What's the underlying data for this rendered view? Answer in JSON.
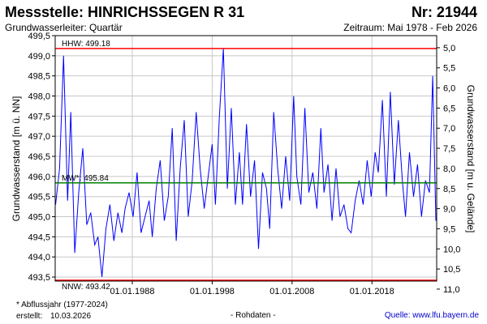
{
  "header": {
    "title": "Messstelle: HINRICHSSEGEN R 31",
    "number": "Nr: 21944",
    "aquifer": "Grundwasserleiter: Quartär",
    "period": "Zeitraum: Mai 1978 - Feb 2026"
  },
  "footer": {
    "footnote": "* Abflussjahr (1977-2024)",
    "created_label": "erstellt:",
    "created_date": "10.03.2026",
    "data_type": "- Rohdaten -",
    "source": "Quelle: www.lfu.bayern.de"
  },
  "colors": {
    "series": "#0000ff",
    "hhw": "#ff0000",
    "nnw": "#ff0000",
    "mw": "#008000",
    "grid": "#c8c8c8"
  },
  "chart_data": {
    "type": "line",
    "title": "",
    "xlabel": "",
    "ylabel": "Grundwasserstand [m ü. NN]",
    "ylabel_right": "Grundwasserstand [m u. Gelände]",
    "ylim": [
      493.4,
      499.5
    ],
    "xlim": [
      1978.35,
      2026.1
    ],
    "x_ticks": [
      {
        "x": 1988.0,
        "label": "01.01.1988"
      },
      {
        "x": 1998.0,
        "label": "01.01.1998"
      },
      {
        "x": 2008.0,
        "label": "01.01.2008"
      },
      {
        "x": 2018.0,
        "label": "01.01.2018"
      }
    ],
    "y_ticks": [
      "493,5",
      "494,0",
      "494,5",
      "495,0",
      "495,5",
      "496,0",
      "496,5",
      "497,0",
      "497,5",
      "498,0",
      "498,5",
      "499,0",
      "499,5"
    ],
    "y_tick_values": [
      493.5,
      494.0,
      494.5,
      495.0,
      495.5,
      496.0,
      496.5,
      497.0,
      497.5,
      498.0,
      498.5,
      499.0,
      499.5
    ],
    "y2_ticks": [
      "5,0",
      "5,5",
      "6,0",
      "6,5",
      "7,0",
      "7,5",
      "8,0",
      "8,5",
      "9,0",
      "9,5",
      "10,0",
      "10,5",
      "11,0"
    ],
    "y2_tick_values": [
      5.0,
      5.5,
      6.0,
      6.5,
      7.0,
      7.5,
      8.0,
      8.5,
      9.0,
      9.5,
      10.0,
      10.5,
      11.0
    ],
    "y2_reference_elevation": 504.2,
    "reference_lines": [
      {
        "name": "HHW",
        "label": "HHW: 499.18",
        "value": 499.18
      },
      {
        "name": "MW",
        "label": "MW*: 495.84",
        "value": 495.84
      },
      {
        "name": "NNW",
        "label": "NNW: 493.42",
        "value": 493.42
      }
    ],
    "series": [
      {
        "x": [
          1978.4,
          1978.9,
          1979.4,
          1979.9,
          1980.3,
          1980.8,
          1981.3,
          1981.8,
          1982.3,
          1982.8,
          1983.3,
          1983.7,
          1984.2,
          1984.7,
          1985.2,
          1985.7,
          1986.2,
          1986.7,
          1987.1,
          1987.6,
          1988.1,
          1988.6,
          1989.1,
          1989.6,
          1990.1,
          1990.5,
          1991.0,
          1991.5,
          1992.0,
          1992.5,
          1993.0,
          1993.5,
          1994.0,
          1994.5,
          1995.0,
          1995.5,
          1996.0,
          1996.5,
          1997.0,
          1997.5,
          1998.0,
          1998.4,
          1998.9,
          1999.4,
          1999.9,
          2000.4,
          2000.9,
          2001.4,
          2001.8,
          2002.3,
          2002.8,
          2003.3,
          2003.8,
          2004.3,
          2004.8,
          2005.2,
          2005.7,
          2006.2,
          2006.7,
          2007.2,
          2007.7,
          2008.2,
          2008.6,
          2009.1,
          2009.6,
          2010.1,
          2010.6,
          2011.1,
          2011.6,
          2012.0,
          2012.5,
          2013.0,
          2013.5,
          2014.0,
          2014.5,
          2015.0,
          2015.4,
          2015.9,
          2016.4,
          2016.9,
          2017.4,
          2017.9,
          2018.4,
          2018.8,
          2019.3,
          2019.8,
          2020.3,
          2020.8,
          2021.3,
          2021.8,
          2022.2,
          2022.7,
          2023.2,
          2023.7,
          2024.2,
          2024.7,
          2025.2,
          2025.6,
          2026.0
        ],
        "values": [
          495.3,
          496.2,
          499.0,
          495.4,
          497.6,
          494.1,
          495.6,
          496.7,
          494.8,
          495.1,
          494.3,
          494.5,
          493.5,
          494.7,
          495.3,
          494.4,
          495.1,
          494.6,
          495.2,
          495.6,
          495.0,
          496.1,
          494.6,
          495.0,
          495.4,
          494.5,
          495.7,
          496.4,
          494.9,
          495.5,
          497.2,
          494.4,
          496.2,
          497.4,
          495.0,
          495.9,
          497.6,
          496.2,
          495.2,
          496.0,
          496.8,
          495.3,
          497.5,
          499.18,
          495.7,
          497.7,
          495.3,
          496.6,
          495.3,
          497.3,
          495.5,
          496.4,
          494.2,
          496.1,
          495.7,
          494.7,
          497.6,
          496.2,
          495.2,
          496.5,
          495.4,
          498.0,
          496.0,
          495.3,
          497.7,
          495.6,
          496.1,
          495.2,
          497.2,
          495.6,
          496.3,
          494.9,
          496.2,
          495.0,
          495.3,
          494.7,
          494.6,
          495.4,
          495.9,
          495.3,
          496.4,
          495.5,
          496.6,
          496.1,
          497.9,
          495.5,
          498.1,
          495.8,
          497.4,
          495.9,
          495.0,
          496.6,
          495.5,
          496.3,
          495.0,
          495.9,
          495.6,
          498.5,
          494.9
        ]
      }
    ]
  }
}
